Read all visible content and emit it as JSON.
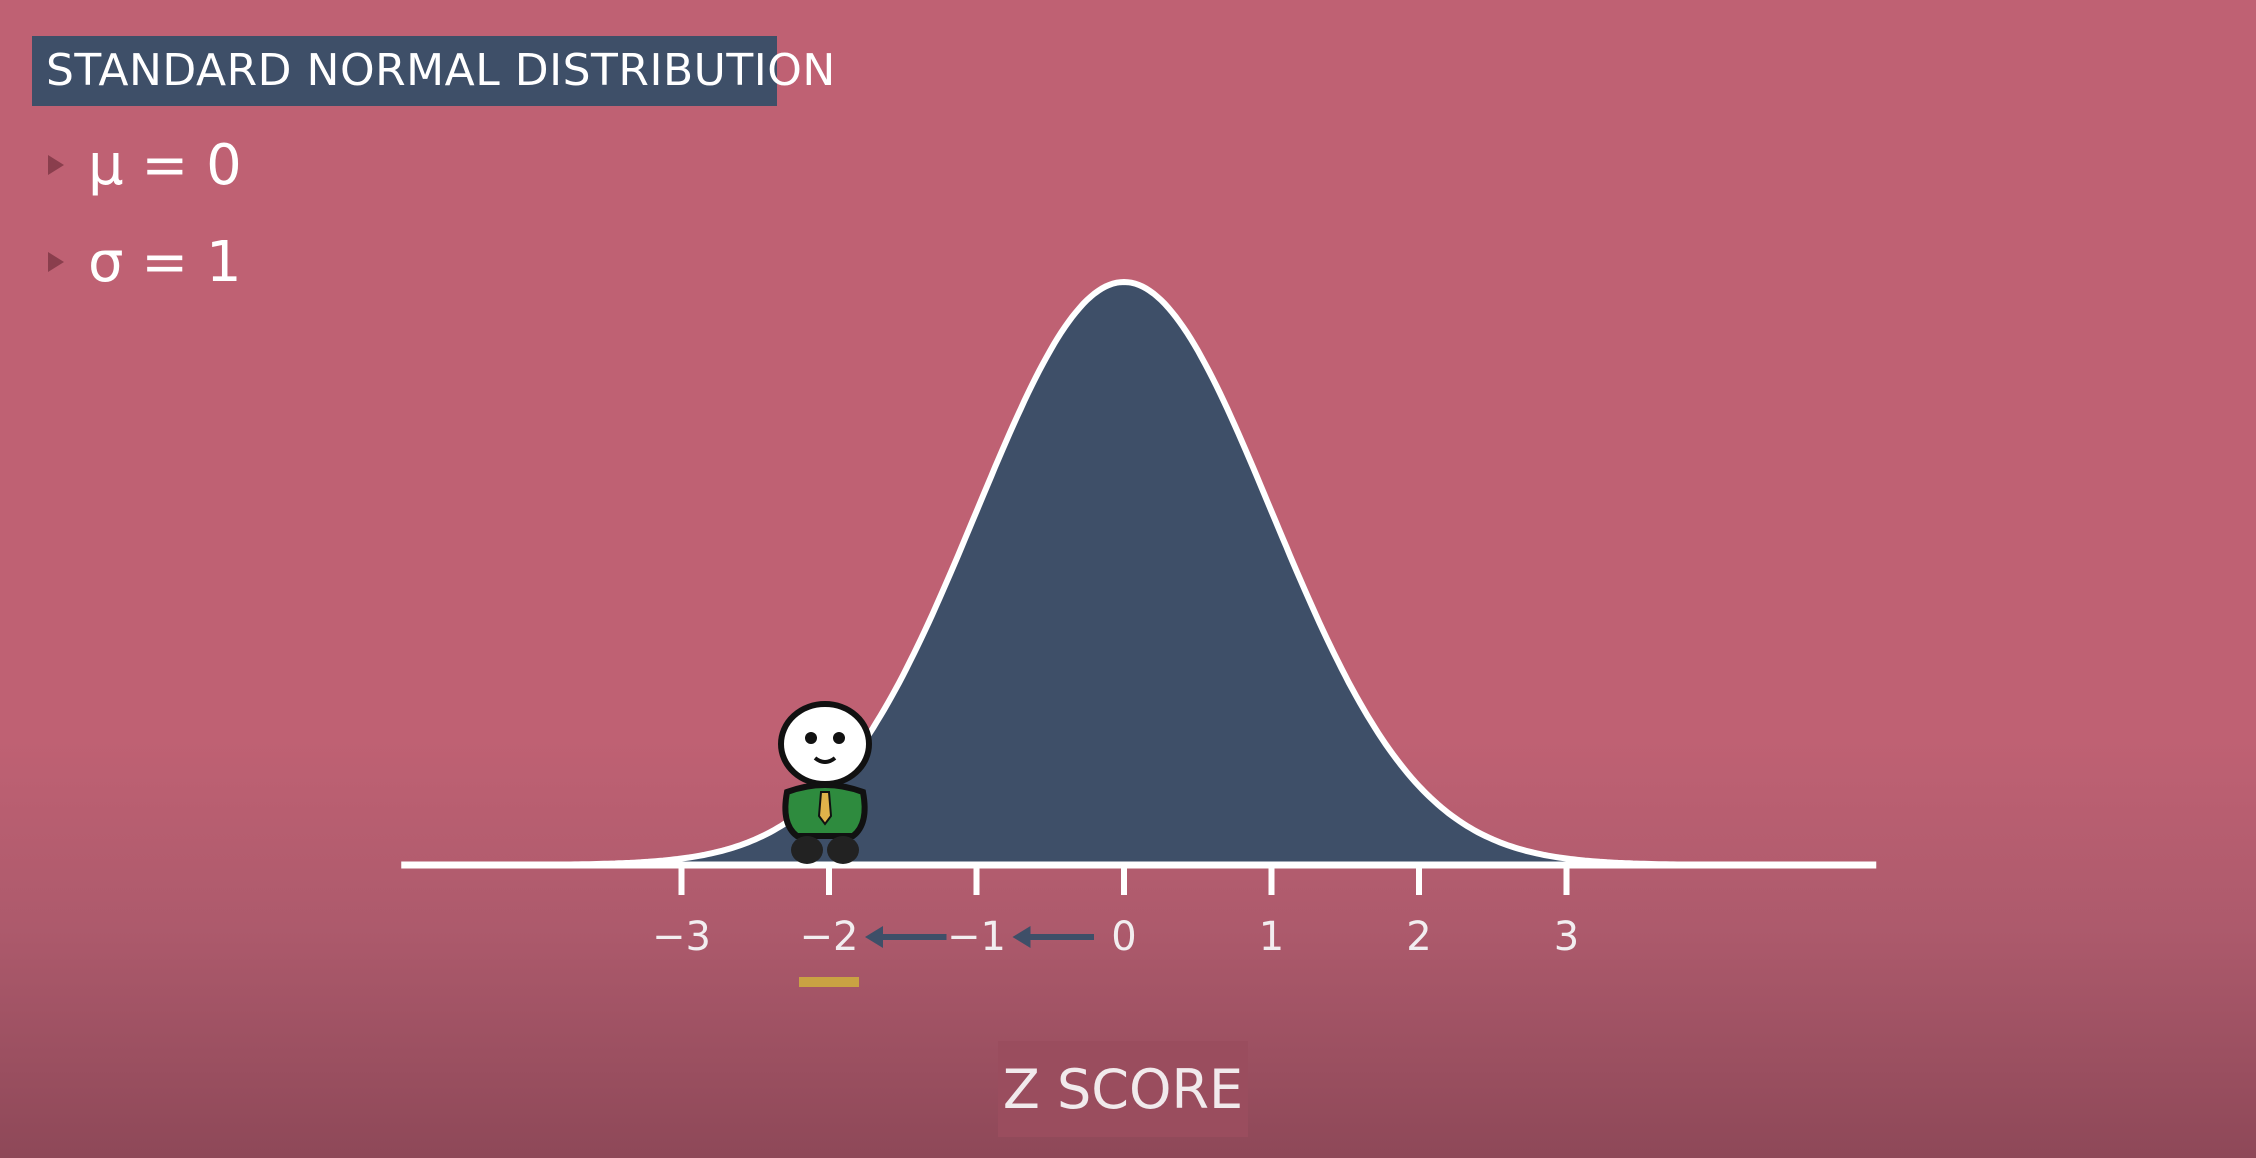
{
  "title": "STANDARD NORMAL DISTRIBUTION",
  "bullets": [
    {
      "text": "μ = 0"
    },
    {
      "text": "σ = 1"
    }
  ],
  "axis_label": "Z SCORE",
  "colors": {
    "background": "#bf6173",
    "curve_fill": "#3e4f68",
    "curve_stroke": "#ffffff",
    "arrow": "#3e4f68",
    "highlight_underline": "#c9a243",
    "character_shirt": "#2e8b3e"
  },
  "chart_data": {
    "type": "area",
    "title": "STANDARD NORMAL DISTRIBUTION",
    "xlabel": "Z SCORE",
    "ylabel": "",
    "distribution": "normal",
    "mean": 0,
    "sd": 1,
    "xlim": [
      -4.9,
      5.1
    ],
    "ticks": [
      -3,
      -2,
      -1,
      0,
      1,
      2,
      3
    ],
    "tick_labels": [
      "−3",
      "−2",
      "−1",
      "0",
      "1",
      "2",
      "3"
    ],
    "arrows": [
      {
        "from": 0,
        "to": -1
      },
      {
        "from": -1,
        "to": -2
      }
    ],
    "highlighted_tick": -2,
    "character_position": -2,
    "grid": false,
    "legend": "none"
  }
}
